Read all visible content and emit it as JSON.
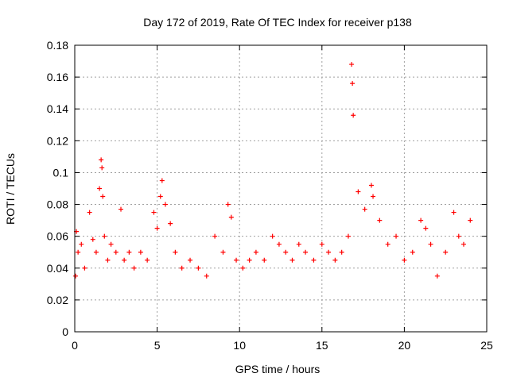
{
  "chart_data": {
    "type": "scatter",
    "title": "Day 172 of 2019, Rate Of TEC Index for receiver p138",
    "xlabel": "GPS time / hours",
    "ylabel": "ROTI / TECUs",
    "xlim": [
      0,
      25
    ],
    "ylim": [
      0,
      0.18
    ],
    "xticks": [
      "0",
      "5",
      "10",
      "15",
      "20",
      "25"
    ],
    "yticks": [
      "0",
      "0.02",
      "0.04",
      "0.06",
      "0.08",
      "0.1",
      "0.12",
      "0.14",
      "0.16",
      "0.18"
    ],
    "xtick_values": [
      0,
      5,
      10,
      15,
      20,
      25
    ],
    "ytick_values": [
      0,
      0.02,
      0.04,
      0.06,
      0.08,
      0.1,
      0.12,
      0.14,
      0.16,
      0.18
    ],
    "grid": true,
    "marker": "+",
    "color": "#ff0000",
    "series": [
      {
        "x": [
          0.05,
          0.1,
          0.2,
          0.4,
          0.6,
          0.9,
          1.1,
          1.3,
          1.5,
          1.6,
          1.65,
          1.7,
          1.8,
          2.0,
          2.2,
          2.5,
          2.8,
          3.0,
          3.3,
          3.6,
          4.0,
          4.4,
          4.8,
          5.0,
          5.2,
          5.3,
          5.5,
          5.8,
          6.1,
          6.5,
          7.0,
          7.5,
          8.0,
          8.5,
          9.0,
          9.3,
          9.5,
          9.8,
          10.2,
          10.6,
          11.0,
          11.5,
          12.0,
          12.4,
          12.8,
          13.2,
          13.6,
          14.0,
          14.5,
          15.0,
          15.4,
          15.8,
          16.2,
          16.6,
          16.8,
          16.85,
          16.9,
          17.2,
          17.6,
          18.0,
          18.1,
          18.5,
          19.0,
          19.5,
          20.0,
          20.5,
          21.0,
          21.3,
          21.6,
          22.0,
          22.5,
          23.0,
          23.3,
          23.6,
          24.0
        ],
        "y": [
          0.035,
          0.063,
          0.05,
          0.055,
          0.04,
          0.075,
          0.058,
          0.05,
          0.09,
          0.108,
          0.103,
          0.085,
          0.06,
          0.045,
          0.055,
          0.05,
          0.077,
          0.045,
          0.05,
          0.04,
          0.05,
          0.045,
          0.075,
          0.065,
          0.085,
          0.095,
          0.08,
          0.068,
          0.05,
          0.04,
          0.045,
          0.04,
          0.035,
          0.06,
          0.05,
          0.08,
          0.072,
          0.045,
          0.04,
          0.045,
          0.05,
          0.045,
          0.06,
          0.055,
          0.05,
          0.045,
          0.055,
          0.05,
          0.045,
          0.055,
          0.05,
          0.045,
          0.05,
          0.06,
          0.168,
          0.156,
          0.136,
          0.088,
          0.077,
          0.092,
          0.085,
          0.07,
          0.055,
          0.06,
          0.045,
          0.05,
          0.07,
          0.065,
          0.055,
          0.035,
          0.05,
          0.075,
          0.06,
          0.055,
          0.07
        ]
      }
    ]
  }
}
